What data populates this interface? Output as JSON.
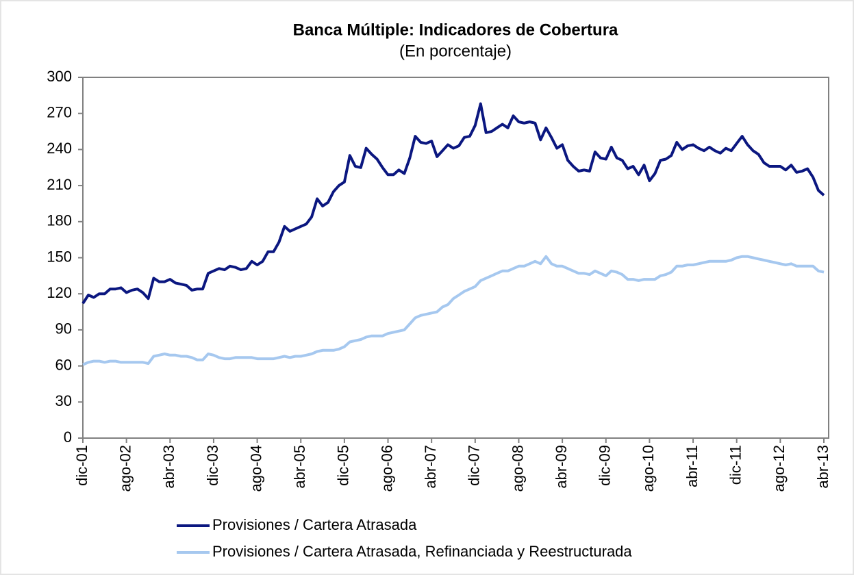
{
  "chart_data": {
    "type": "line",
    "title": "Banca Múltiple: Indicadores de Cobertura",
    "subtitle": "(En porcentaje)",
    "categories": [
      "dic-01",
      null,
      null,
      null,
      null,
      null,
      null,
      null,
      "ago-02",
      null,
      null,
      null,
      null,
      null,
      null,
      null,
      "abr-03",
      null,
      null,
      null,
      null,
      null,
      null,
      null,
      "dic-03",
      null,
      null,
      null,
      null,
      null,
      null,
      null,
      "ago-04",
      null,
      null,
      null,
      null,
      null,
      null,
      null,
      "abr-05",
      null,
      null,
      null,
      null,
      null,
      null,
      null,
      "dic-05",
      null,
      null,
      null,
      null,
      null,
      null,
      null,
      "ago-06",
      null,
      null,
      null,
      null,
      null,
      null,
      null,
      "abr-07",
      null,
      null,
      null,
      null,
      null,
      null,
      null,
      "dic-07",
      null,
      null,
      null,
      null,
      null,
      null,
      null,
      "ago-08",
      null,
      null,
      null,
      null,
      null,
      null,
      null,
      "abr-09",
      null,
      null,
      null,
      null,
      null,
      null,
      null,
      "dic-09",
      null,
      null,
      null,
      null,
      null,
      null,
      null,
      "ago-10",
      null,
      null,
      null,
      null,
      null,
      null,
      null,
      "abr-11",
      null,
      null,
      null,
      null,
      null,
      null,
      null,
      "dic-11",
      null,
      null,
      null,
      null,
      null,
      null,
      null,
      "ago-12",
      null,
      null,
      null,
      null,
      null,
      null,
      null,
      "abr-13"
    ],
    "series": [
      {
        "name": "Provisiones / Cartera Atrasada",
        "color": "#0b1780",
        "values": [
          112,
          119,
          117,
          120,
          120,
          124,
          124,
          125,
          121,
          123,
          124,
          121,
          116,
          133,
          130,
          130,
          132,
          129,
          128,
          127,
          123,
          124,
          124,
          137,
          139,
          141,
          140,
          143,
          142,
          140,
          141,
          147,
          144,
          147,
          155,
          155,
          163,
          176,
          172,
          174,
          176,
          178,
          184,
          199,
          193,
          196,
          205,
          210,
          213,
          235,
          226,
          225,
          241,
          236,
          232,
          225,
          219,
          219,
          223,
          220,
          233,
          251,
          246,
          245,
          247,
          234,
          239,
          244,
          241,
          243,
          250,
          251,
          260,
          278,
          254,
          255,
          258,
          261,
          258,
          268,
          263,
          262,
          263,
          262,
          248,
          258,
          250,
          241,
          244,
          231,
          226,
          222,
          223,
          222,
          238,
          233,
          232,
          242,
          233,
          231,
          224,
          226,
          219,
          227,
          214,
          220,
          231,
          232,
          235,
          246,
          240,
          243,
          244,
          241,
          239,
          242,
          239,
          237,
          241,
          239,
          245,
          251,
          244,
          239,
          236,
          229,
          226,
          226,
          226,
          223,
          227,
          221,
          222,
          224,
          217,
          206,
          202
        ]
      },
      {
        "name": "Provisiones / Cartera Atrasada, Refinanciada y Reestructurada",
        "color": "#a6c8ef",
        "values": [
          61,
          63,
          64,
          64,
          63,
          64,
          64,
          63,
          63,
          63,
          63,
          63,
          62,
          68,
          69,
          70,
          69,
          69,
          68,
          68,
          67,
          65,
          65,
          70,
          69,
          67,
          66,
          66,
          67,
          67,
          67,
          67,
          66,
          66,
          66,
          66,
          67,
          68,
          67,
          68,
          68,
          69,
          70,
          72,
          73,
          73,
          73,
          74,
          76,
          80,
          81,
          82,
          84,
          85,
          85,
          85,
          87,
          88,
          89,
          90,
          95,
          100,
          102,
          103,
          104,
          105,
          109,
          111,
          116,
          119,
          122,
          124,
          126,
          131,
          133,
          135,
          137,
          139,
          139,
          141,
          143,
          143,
          145,
          147,
          145,
          151,
          145,
          143,
          143,
          141,
          139,
          137,
          137,
          136,
          139,
          137,
          135,
          139,
          138,
          136,
          132,
          132,
          131,
          132,
          132,
          132,
          135,
          136,
          138,
          143,
          143,
          144,
          144,
          145,
          146,
          147,
          147,
          147,
          147,
          148,
          150,
          151,
          151,
          150,
          149,
          148,
          147,
          146,
          145,
          144,
          145,
          143,
          143,
          143,
          143,
          139,
          138
        ]
      }
    ],
    "ylim": [
      0,
      300
    ],
    "yticks": [
      0,
      30,
      60,
      90,
      120,
      150,
      180,
      210,
      240,
      270,
      300
    ]
  }
}
